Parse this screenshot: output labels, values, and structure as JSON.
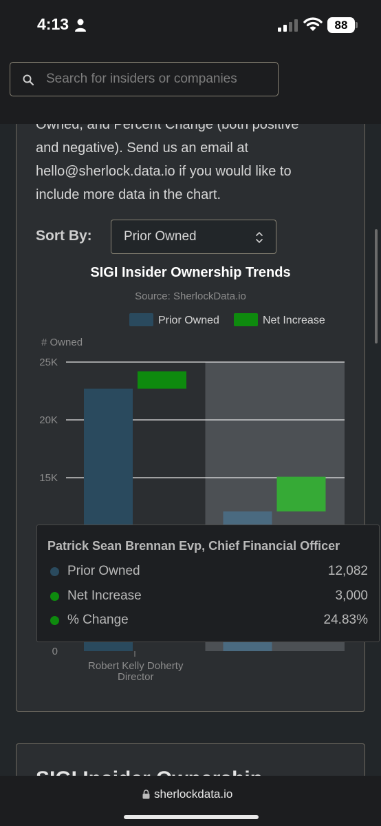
{
  "status_bar": {
    "time": "4:13",
    "battery": "88"
  },
  "search": {
    "placeholder": "Search for insiders or companies"
  },
  "description_lines": [
    "Owned, and Percent Change (both positive",
    "and negative). Send us an email at",
    "hello@sherlock.data.io if you would like to",
    "include more data in the chart."
  ],
  "sort": {
    "label": "Sort By:",
    "selected": "Prior Owned"
  },
  "chart_data": {
    "type": "bar",
    "stacked": "waterfall",
    "title": "SIGI Insider Ownership Trends",
    "subtitle": "Source: SherlockData.io",
    "ylabel": "# Owned",
    "ylim": [
      0,
      25000
    ],
    "yticks": [
      {
        "value": 0,
        "label": "0"
      },
      {
        "value": 15000,
        "label": "15K"
      },
      {
        "value": 20000,
        "label": "20K"
      },
      {
        "value": 25000,
        "label": "25K"
      }
    ],
    "legend_position": "top-right",
    "categories": [
      {
        "label_line1": "Robert Kelly Doherty",
        "label_line2": "Director"
      },
      {
        "label_line1": "Patrick Sean Brennan Evp, Chief Financial Officer",
        "label_line2": ""
      }
    ],
    "series": [
      {
        "name": "Prior Owned",
        "color": "#2a4a5e",
        "values": [
          22700,
          12082
        ]
      },
      {
        "name": "Net Increase",
        "color": "#0e8a0e",
        "values": [
          1500,
          3000
        ]
      }
    ],
    "highlight_index": 1,
    "highlight_net_color": "#36aa36",
    "highlight_prior_color": "#4a6a80"
  },
  "tooltip": {
    "title": "Patrick Sean Brennan Evp, Chief Financial Officer",
    "rows": [
      {
        "label": "Prior Owned",
        "value": "12,082",
        "color": "#2a4a5e"
      },
      {
        "label": "Net Increase",
        "value": "3,000",
        "color": "#0e8a0e"
      },
      {
        "label": "% Change",
        "value": "24.83%",
        "color": "#0e8a0e"
      }
    ]
  },
  "next_card": {
    "title": "SIGI Insider Ownership"
  },
  "url_bar": {
    "domain": "sherlockdata.io"
  }
}
